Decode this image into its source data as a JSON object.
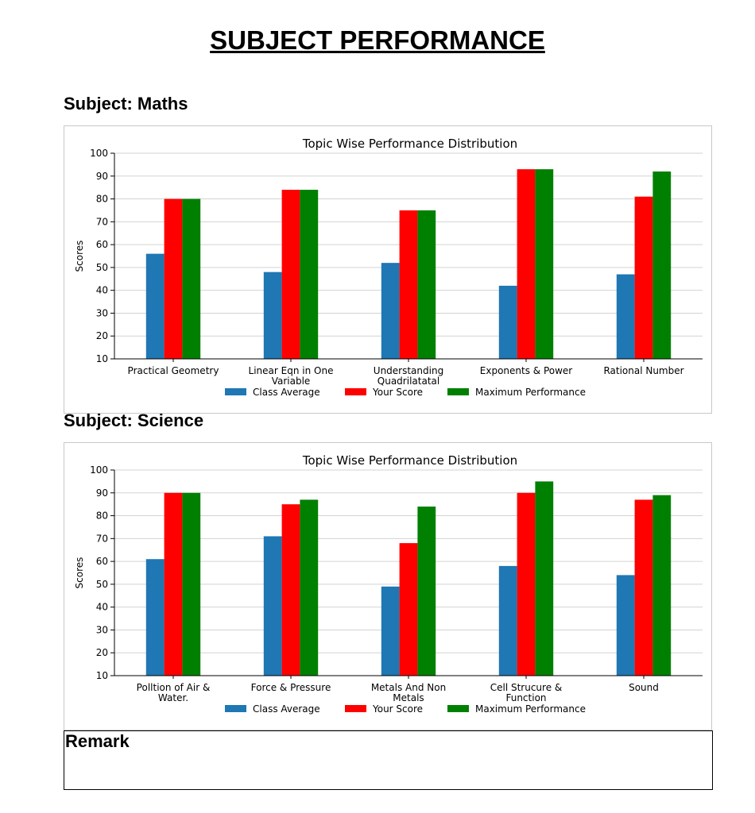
{
  "page": {
    "title": "SUBJECT PERFORMANCE"
  },
  "subjects": [
    {
      "heading": "Subject: Maths"
    },
    {
      "heading": "Subject: Science"
    }
  ],
  "remark": {
    "label": "Remark"
  },
  "colors": {
    "class_average": "#1f77b4",
    "your_score": "#ff0000",
    "max_performance": "#008000"
  },
  "chart_data": [
    {
      "type": "bar",
      "title": "Topic Wise Performance Distribution",
      "xlabel": "",
      "ylabel": "Scores",
      "ylim": [
        10,
        100
      ],
      "yticks": [
        10,
        20,
        30,
        40,
        50,
        60,
        70,
        80,
        90,
        100
      ],
      "grid": true,
      "legend_position": "bottom",
      "categories": [
        [
          "Practical Geometry"
        ],
        [
          "Linear Eqn in One",
          "Variable"
        ],
        [
          "Understanding",
          "Quadrilatatal"
        ],
        [
          "Exponents & Power"
        ],
        [
          "Rational Number"
        ]
      ],
      "series": [
        {
          "name": "Class Average",
          "color": "#1f77b4",
          "values": [
            56,
            48,
            52,
            42,
            47
          ]
        },
        {
          "name": "Your Score",
          "color": "#ff0000",
          "values": [
            80,
            84,
            75,
            93,
            81
          ]
        },
        {
          "name": "Maximum Performance",
          "color": "#008000",
          "values": [
            80,
            84,
            75,
            93,
            92
          ]
        }
      ]
    },
    {
      "type": "bar",
      "title": "Topic Wise Performance Distribution",
      "xlabel": "",
      "ylabel": "Scores",
      "ylim": [
        10,
        100
      ],
      "yticks": [
        10,
        20,
        30,
        40,
        50,
        60,
        70,
        80,
        90,
        100
      ],
      "grid": true,
      "legend_position": "bottom",
      "categories": [
        [
          "Polltion of Air &",
          "Water."
        ],
        [
          "Force & Pressure"
        ],
        [
          "Metals And Non",
          "Metals"
        ],
        [
          "Cell Strucure &",
          "Function"
        ],
        [
          "Sound"
        ]
      ],
      "series": [
        {
          "name": "Class Average",
          "color": "#1f77b4",
          "values": [
            61,
            71,
            49,
            58,
            54
          ]
        },
        {
          "name": "Your Score",
          "color": "#ff0000",
          "values": [
            90,
            85,
            68,
            90,
            87
          ]
        },
        {
          "name": "Maximum Performance",
          "color": "#008000",
          "values": [
            90,
            87,
            84,
            95,
            89
          ]
        }
      ]
    }
  ]
}
